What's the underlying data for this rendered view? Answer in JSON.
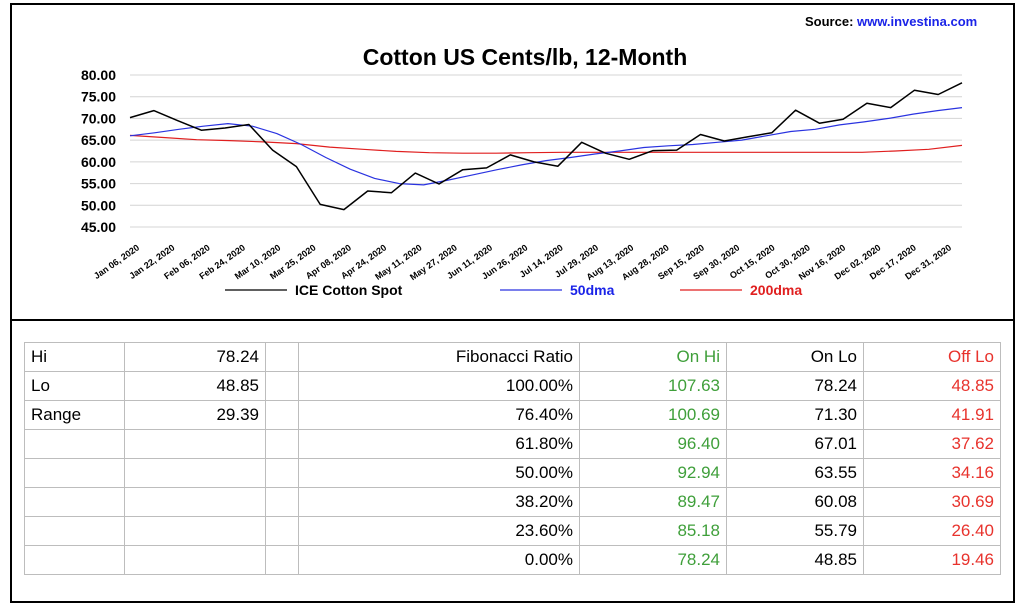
{
  "source": {
    "label": "Source:",
    "url": "www.investina.com"
  },
  "chart_data": {
    "type": "line",
    "title": "Cotton US Cents/lb, 12-Month",
    "ylim": [
      45,
      80
    ],
    "y_ticks": [
      "45.00",
      "50.00",
      "55.00",
      "60.00",
      "65.00",
      "70.00",
      "75.00",
      "80.00"
    ],
    "x_ticks": [
      "Jan 06, 2020",
      "Jan 22, 2020",
      "Feb 06, 2020",
      "Feb 24, 2020",
      "Mar 10, 2020",
      "Mar 25, 2020",
      "Apr 08, 2020",
      "Apr 24, 2020",
      "May 11, 2020",
      "May 27, 2020",
      "Jun 11, 2020",
      "Jun 26, 2020",
      "Jul 14, 2020",
      "Jul 29, 2020",
      "Aug 13, 2020",
      "Aug 28, 2020",
      "Sep 15, 2020",
      "Sep 30, 2020",
      "Oct 15, 2020",
      "Oct 30, 2020",
      "Nov 16, 2020",
      "Dec 02, 2020",
      "Dec 17, 2020",
      "Dec 31, 2020"
    ],
    "grid": "horizontal",
    "legend": "bottom",
    "series": [
      {
        "name": "ICE Cotton Spot",
        "color": "#000000",
        "values": [
          70.2,
          71.8,
          69.5,
          67.3,
          67.8,
          68.6,
          62.7,
          58.9,
          50.2,
          49.0,
          53.3,
          52.9,
          57.4,
          54.9,
          58.2,
          58.6,
          61.6,
          60.0,
          59.0,
          64.5,
          62.0,
          60.6,
          62.6,
          62.7,
          66.3,
          64.8,
          65.8,
          66.7,
          71.9,
          68.9,
          69.8,
          73.5,
          72.5,
          76.5,
          75.5,
          78.2
        ]
      },
      {
        "name": "50dma",
        "color": "#2a33e0",
        "values": [
          66.0,
          66.7,
          67.5,
          68.2,
          68.8,
          68.2,
          66.5,
          64.0,
          61.0,
          58.3,
          56.2,
          55.0,
          54.7,
          55.8,
          57.0,
          58.2,
          59.3,
          60.3,
          61.0,
          61.8,
          62.5,
          63.3,
          63.7,
          64.0,
          64.5,
          65.0,
          66.0,
          67.0,
          67.5,
          68.5,
          69.2,
          70.0,
          71.0,
          71.8,
          72.5
        ]
      },
      {
        "name": "200dma",
        "color": "#e01f1f",
        "values": [
          66.1,
          65.6,
          65.1,
          64.9,
          64.6,
          64.2,
          63.4,
          62.9,
          62.4,
          62.1,
          62.0,
          62.0,
          62.1,
          62.2,
          62.2,
          62.2,
          62.2,
          62.2,
          62.2,
          62.2,
          62.2,
          62.2,
          62.2,
          62.5,
          62.9,
          63.8
        ]
      }
    ]
  },
  "table": {
    "rows": [
      [
        "Hi",
        "78.24",
        "",
        "Fibonacci  Ratio",
        "On Hi",
        "On Lo",
        "Off Lo"
      ],
      [
        "Lo",
        "48.85",
        "",
        "100.00%",
        "107.63",
        "78.24",
        "48.85"
      ],
      [
        "Range",
        "29.39",
        "",
        "76.40%",
        "100.69",
        "71.30",
        "41.91"
      ],
      [
        "",
        "",
        "",
        "61.80%",
        "96.40",
        "67.01",
        "37.62"
      ],
      [
        "",
        "",
        "",
        "50.00%",
        "92.94",
        "63.55",
        "34.16"
      ],
      [
        "",
        "",
        "",
        "38.20%",
        "89.47",
        "60.08",
        "30.69"
      ],
      [
        "",
        "",
        "",
        "23.60%",
        "85.18",
        "55.79",
        "26.40"
      ],
      [
        "",
        "",
        "",
        "0.00%",
        "78.24",
        "48.85",
        "19.46"
      ]
    ]
  }
}
